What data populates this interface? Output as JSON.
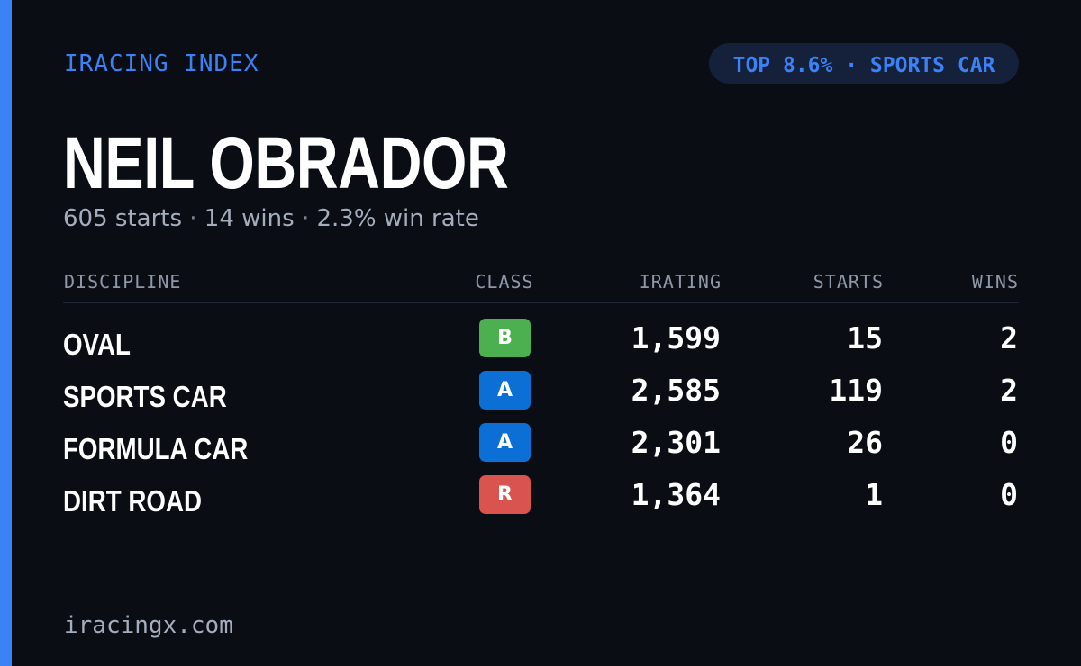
{
  "brand": "IRACING INDEX",
  "rank_badge": "TOP 8.6% · SPORTS CAR",
  "driver": {
    "name": "NEIL OBRADOR",
    "starts_text": "605 starts",
    "wins_text": "14 wins",
    "win_rate_text": "2.3% win rate",
    "separator": "·"
  },
  "table": {
    "headers": {
      "discipline": "DISCIPLINE",
      "class": "CLASS",
      "irating": "IRATING",
      "starts": "STARTS",
      "wins": "WINS"
    },
    "rows": [
      {
        "discipline": "OVAL",
        "class": "B",
        "class_color": "#4caf50",
        "irating": "1,599",
        "starts": "15",
        "wins": "2"
      },
      {
        "discipline": "SPORTS CAR",
        "class": "A",
        "class_color": "#0b6fd6",
        "irating": "2,585",
        "starts": "119",
        "wins": "2"
      },
      {
        "discipline": "FORMULA CAR",
        "class": "A",
        "class_color": "#0b6fd6",
        "irating": "2,301",
        "starts": "26",
        "wins": "0"
      },
      {
        "discipline": "DIRT ROAD",
        "class": "R",
        "class_color": "#d9534f",
        "irating": "1,364",
        "starts": "1",
        "wins": "0"
      }
    ]
  },
  "footer": {
    "domain": "iracingx.com"
  },
  "colors": {
    "background": "#0a0d14",
    "accent": "#3b82f6",
    "muted_text": "#a4adbd",
    "header_text": "#8f98a8"
  }
}
